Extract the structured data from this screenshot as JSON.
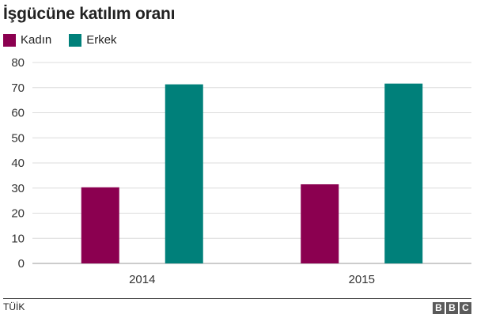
{
  "title": "İşgücüne katılım oranı",
  "legend": [
    {
      "label": "Kadın",
      "color": "#8b0050"
    },
    {
      "label": "Erkek",
      "color": "#00807a"
    }
  ],
  "chart_data": {
    "type": "bar",
    "title": "İşgücüne katılım oranı",
    "xlabel": "",
    "ylabel": "",
    "categories": [
      "2014",
      "2015"
    ],
    "series": [
      {
        "name": "Kadın",
        "color": "#8b0050",
        "values": [
          30.3,
          31.5
        ]
      },
      {
        "name": "Erkek",
        "color": "#00807a",
        "values": [
          71.3,
          71.6
        ]
      }
    ],
    "ylim": [
      0,
      80
    ],
    "yticks": [
      0,
      10,
      20,
      30,
      40,
      50,
      60,
      70,
      80
    ],
    "grid": true,
    "legend_position": "top-left"
  },
  "footer": {
    "source": "TÜİK",
    "logo": [
      "B",
      "B",
      "C"
    ]
  }
}
